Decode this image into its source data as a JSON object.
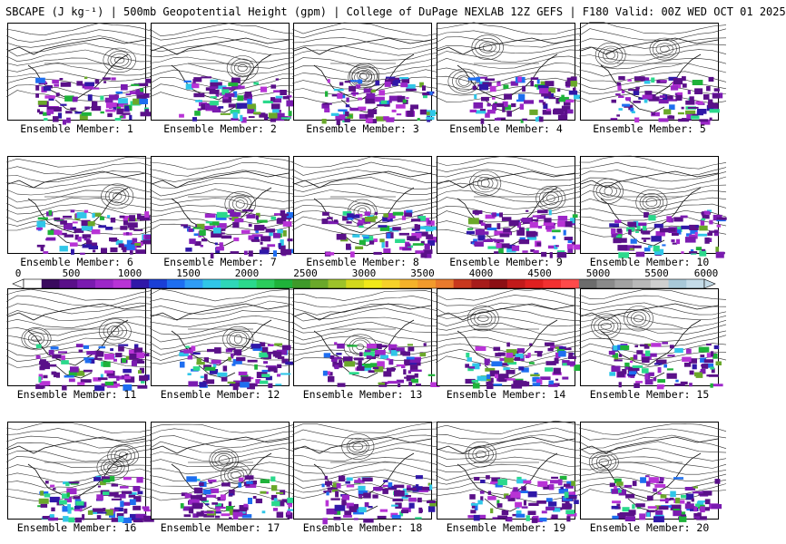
{
  "title": "SBCAPE (J kg⁻¹) | 500mb Geopotential Height (gpm) | College of DuPage NEXLAB 12Z GEFS | F180 Valid: 00Z WED OCT 01 2025",
  "colorbar": {
    "labels": [
      "0",
      "500",
      "1000",
      "1500",
      "2000",
      "2500",
      "3000",
      "3500",
      "4000",
      "4500",
      "5000",
      "5500",
      "6000"
    ],
    "colors": [
      "#ffffff",
      "#3a0a5e",
      "#5a1089",
      "#7a1bb0",
      "#9c27c8",
      "#b833d6",
      "#3018a8",
      "#1a3fd6",
      "#1e6ef0",
      "#2f9cf6",
      "#30c6e8",
      "#2fd7b8",
      "#2bd98c",
      "#2bcc5c",
      "#1fb23a",
      "#3e9a2a",
      "#6aa82a",
      "#9cc22a",
      "#d2d81c",
      "#f0e81a",
      "#f6d12a",
      "#f4b22a",
      "#f29a2c",
      "#ea7a2c",
      "#c8381e",
      "#a61c1a",
      "#8c0f14",
      "#c21a1a",
      "#e02020",
      "#f23030",
      "#ff4a4a",
      "#6c6c6c",
      "#8a8a8a",
      "#a2a2a2",
      "#b8b8b8",
      "#cfcfcf",
      "#a8c8d8",
      "#c4dbe8"
    ]
  },
  "members": [
    {
      "label": "Ensemble Member: 1"
    },
    {
      "label": "Ensemble Member: 2"
    },
    {
      "label": "Ensemble Member: 3"
    },
    {
      "label": "Ensemble Member: 4"
    },
    {
      "label": "Ensemble Member: 5"
    },
    {
      "label": "Ensemble Member: 6"
    },
    {
      "label": "Ensemble Member: 7"
    },
    {
      "label": "Ensemble Member: 8"
    },
    {
      "label": "Ensemble Member: 9"
    },
    {
      "label": "Ensemble Member: 10"
    },
    {
      "label": "Ensemble Member: 11"
    },
    {
      "label": "Ensemble Member: 12"
    },
    {
      "label": "Ensemble Member: 13"
    },
    {
      "label": "Ensemble Member: 14"
    },
    {
      "label": "Ensemble Member: 15"
    },
    {
      "label": "Ensemble Member: 16"
    },
    {
      "label": "Ensemble Member: 17"
    },
    {
      "label": "Ensemble Member: 18"
    },
    {
      "label": "Ensemble Member: 19"
    },
    {
      "label": "Ensemble Member: 20"
    }
  ]
}
